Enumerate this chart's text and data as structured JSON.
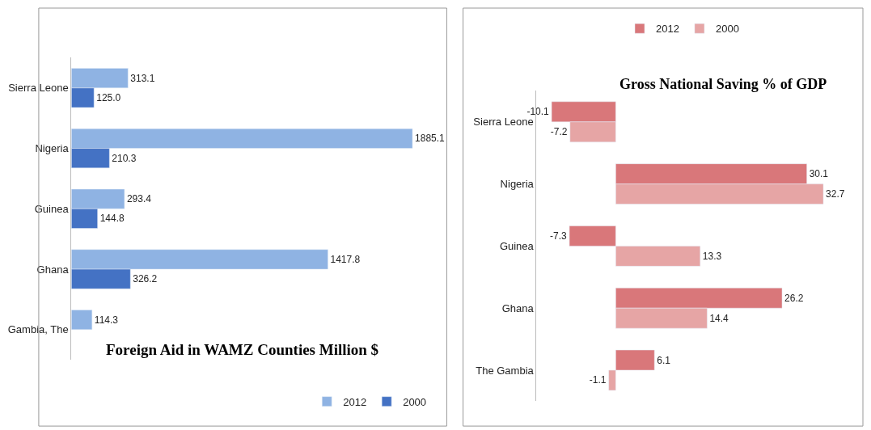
{
  "chart_data": [
    {
      "type": "bar",
      "orientation": "horizontal",
      "title": "Foreign Aid in WAMZ Counties Million $",
      "categories": [
        "Sierra Leone",
        "Nigeria",
        "Guinea",
        "Ghana",
        "Gambia, The"
      ],
      "series": [
        {
          "name": "2012",
          "color": "#8fb3e3",
          "values": [
            313.1,
            1885.1,
            293.4,
            1417.8,
            114.3
          ],
          "value_labels": [
            "313.1",
            "1885.1",
            "293.4",
            "1417.8",
            "114.3"
          ]
        },
        {
          "name": "2000",
          "color": "#4472c4",
          "values": [
            125.0,
            210.3,
            144.8,
            326.2,
            null
          ],
          "value_labels": [
            "125.0",
            "210.3",
            "144.8",
            "326.2",
            null
          ]
        }
      ],
      "legend": "bottom right",
      "tick_labels": "y"
    },
    {
      "type": "bar",
      "orientation": "horizontal",
      "title": "Gross National Saving % of GDP",
      "categories": [
        "Sierra Leone",
        "Nigeria",
        "Guinea",
        "Ghana",
        "The Gambia"
      ],
      "series": [
        {
          "name": "2012",
          "color": "#d9777a",
          "values": [
            -10.1,
            30.1,
            -7.3,
            26.2,
            6.1
          ]
        },
        {
          "name": "2000",
          "color": "#e6a5a5",
          "values": [
            -7.2,
            32.7,
            13.3,
            14.4,
            -1.1
          ]
        }
      ],
      "data_labels": true,
      "legend": "top",
      "tick_labels": "y"
    }
  ]
}
